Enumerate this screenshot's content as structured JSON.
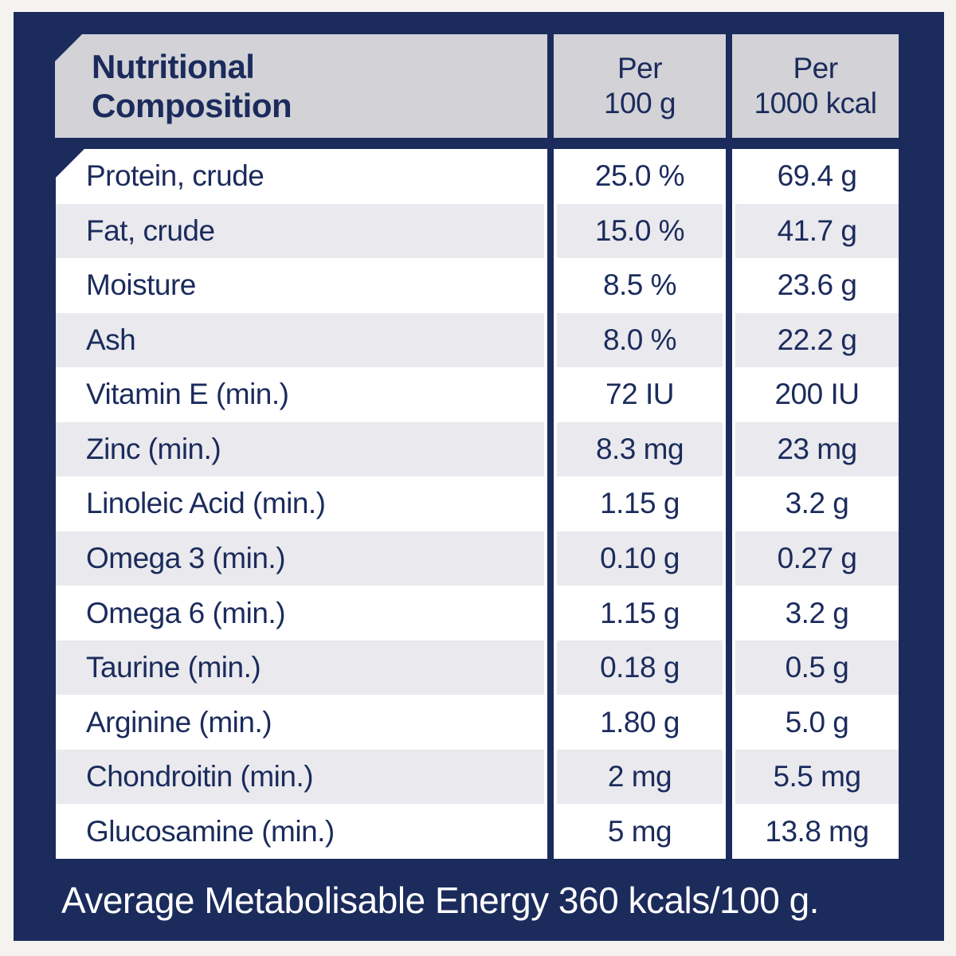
{
  "colors": {
    "panel_navy": "#1b2b5c",
    "header_gray": "#d2d2d7",
    "row_alt_gray": "#e9e9ee",
    "row_white": "#ffffff",
    "page_margin": "#f5f3ef",
    "text_navy": "#1b2b5c",
    "footer_text_white": "#ffffff"
  },
  "table": {
    "title_line1": "Nutritional",
    "title_line2": "Composition",
    "columns": [
      {
        "line1": "Per",
        "line2": "100 g"
      },
      {
        "line1": "Per",
        "line2": "1000 kcal"
      }
    ],
    "rows": [
      {
        "label": "Protein, crude",
        "per_100g": "25.0 %",
        "per_1000kcal": "69.4 g"
      },
      {
        "label": "Fat, crude",
        "per_100g": "15.0 %",
        "per_1000kcal": "41.7 g"
      },
      {
        "label": "Moisture",
        "per_100g": "8.5 %",
        "per_1000kcal": "23.6 g"
      },
      {
        "label": "Ash",
        "per_100g": "8.0 %",
        "per_1000kcal": "22.2 g"
      },
      {
        "label": "Vitamin E (min.)",
        "per_100g": "72 IU",
        "per_1000kcal": "200 IU"
      },
      {
        "label": "Zinc (min.)",
        "per_100g": "8.3 mg",
        "per_1000kcal": "23 mg"
      },
      {
        "label": "Linoleic Acid (min.)",
        "per_100g": "1.15 g",
        "per_1000kcal": "3.2 g"
      },
      {
        "label": "Omega 3 (min.)",
        "per_100g": "0.10 g",
        "per_1000kcal": "0.27 g"
      },
      {
        "label": "Omega 6 (min.)",
        "per_100g": "1.15 g",
        "per_1000kcal": "3.2 g"
      },
      {
        "label": "Taurine (min.)",
        "per_100g": "0.18 g",
        "per_1000kcal": "0.5 g"
      },
      {
        "label": "Arginine (min.)",
        "per_100g": "1.80 g",
        "per_1000kcal": "5.0 g"
      },
      {
        "label": "Chondroitin (min.)",
        "per_100g": "2 mg",
        "per_1000kcal": "5.5 mg"
      },
      {
        "label": "Glucosamine (min.)",
        "per_100g": "5 mg",
        "per_1000kcal": "13.8 mg"
      }
    ]
  },
  "footer": {
    "text": "Average Metabolisable Energy 360 kcals/100 g."
  }
}
